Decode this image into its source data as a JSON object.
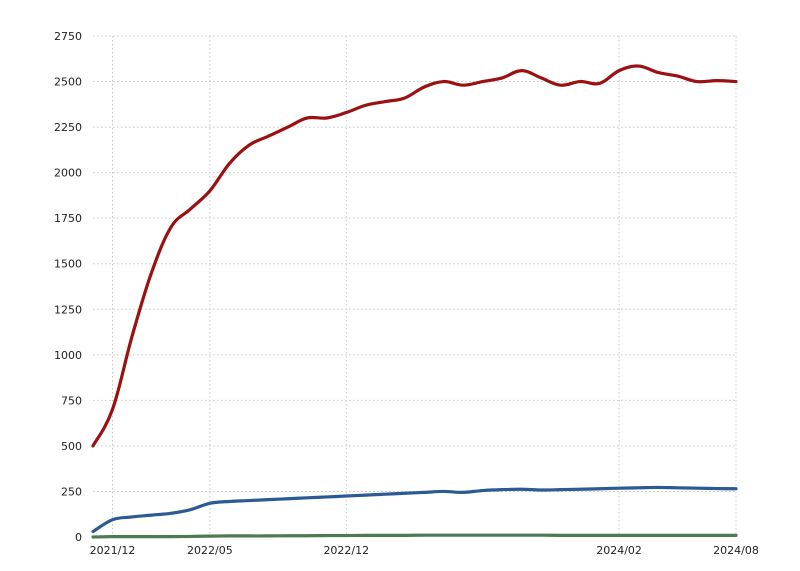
{
  "chart_data": {
    "type": "line",
    "title": "",
    "xlabel": "",
    "ylabel": "",
    "x": [
      "2021/11",
      "2021/12",
      "2022/01",
      "2022/02",
      "2022/03",
      "2022/04",
      "2022/05",
      "2022/06",
      "2022/07",
      "2022/08",
      "2022/09",
      "2022/10",
      "2022/11",
      "2022/12",
      "2023/01",
      "2023/02",
      "2023/03",
      "2023/04",
      "2023/05",
      "2023/06",
      "2023/07",
      "2023/08",
      "2023/09",
      "2023/10",
      "2023/11",
      "2023/12",
      "2024/01",
      "2024/02",
      "2024/03",
      "2024/04",
      "2024/05",
      "2024/06",
      "2024/07",
      "2024/08"
    ],
    "x_tick_labels": [
      "2021/12",
      "2022/05",
      "2022/12",
      "2024/02",
      "2024/08"
    ],
    "y_ticks": [
      "0",
      "250",
      "500",
      "750",
      "1000",
      "1250",
      "1500",
      "1750",
      "2000",
      "2250",
      "2500",
      "2750"
    ],
    "ylim": [
      0,
      2750
    ],
    "grid": true,
    "legend": "none",
    "series": [
      {
        "color": "#9b1111",
        "values": [
          500,
          700,
          1100,
          1450,
          1700,
          1800,
          1900,
          2050,
          2150,
          2200,
          2250,
          2300,
          2300,
          2330,
          2370,
          2390,
          2410,
          2470,
          2500,
          2480,
          2500,
          2520,
          2560,
          2520,
          2480,
          2500,
          2490,
          2560,
          2585,
          2550,
          2530,
          2500,
          2505,
          2500
        ]
      },
      {
        "color": "#2b5a94",
        "values": [
          30,
          95,
          110,
          120,
          130,
          150,
          185,
          195,
          200,
          205,
          210,
          215,
          220,
          225,
          230,
          235,
          240,
          245,
          250,
          245,
          255,
          260,
          262,
          258,
          260,
          262,
          265,
          268,
          270,
          272,
          270,
          268,
          266,
          265
        ]
      },
      {
        "color": "#4e7a52",
        "values": [
          0,
          2,
          2,
          2,
          2,
          3,
          5,
          6,
          6,
          6,
          7,
          7,
          8,
          8,
          9,
          9,
          9,
          10,
          10,
          10,
          10,
          10,
          10,
          10,
          9,
          9,
          9,
          9,
          9,
          9,
          9,
          9,
          9,
          9
        ]
      }
    ]
  }
}
